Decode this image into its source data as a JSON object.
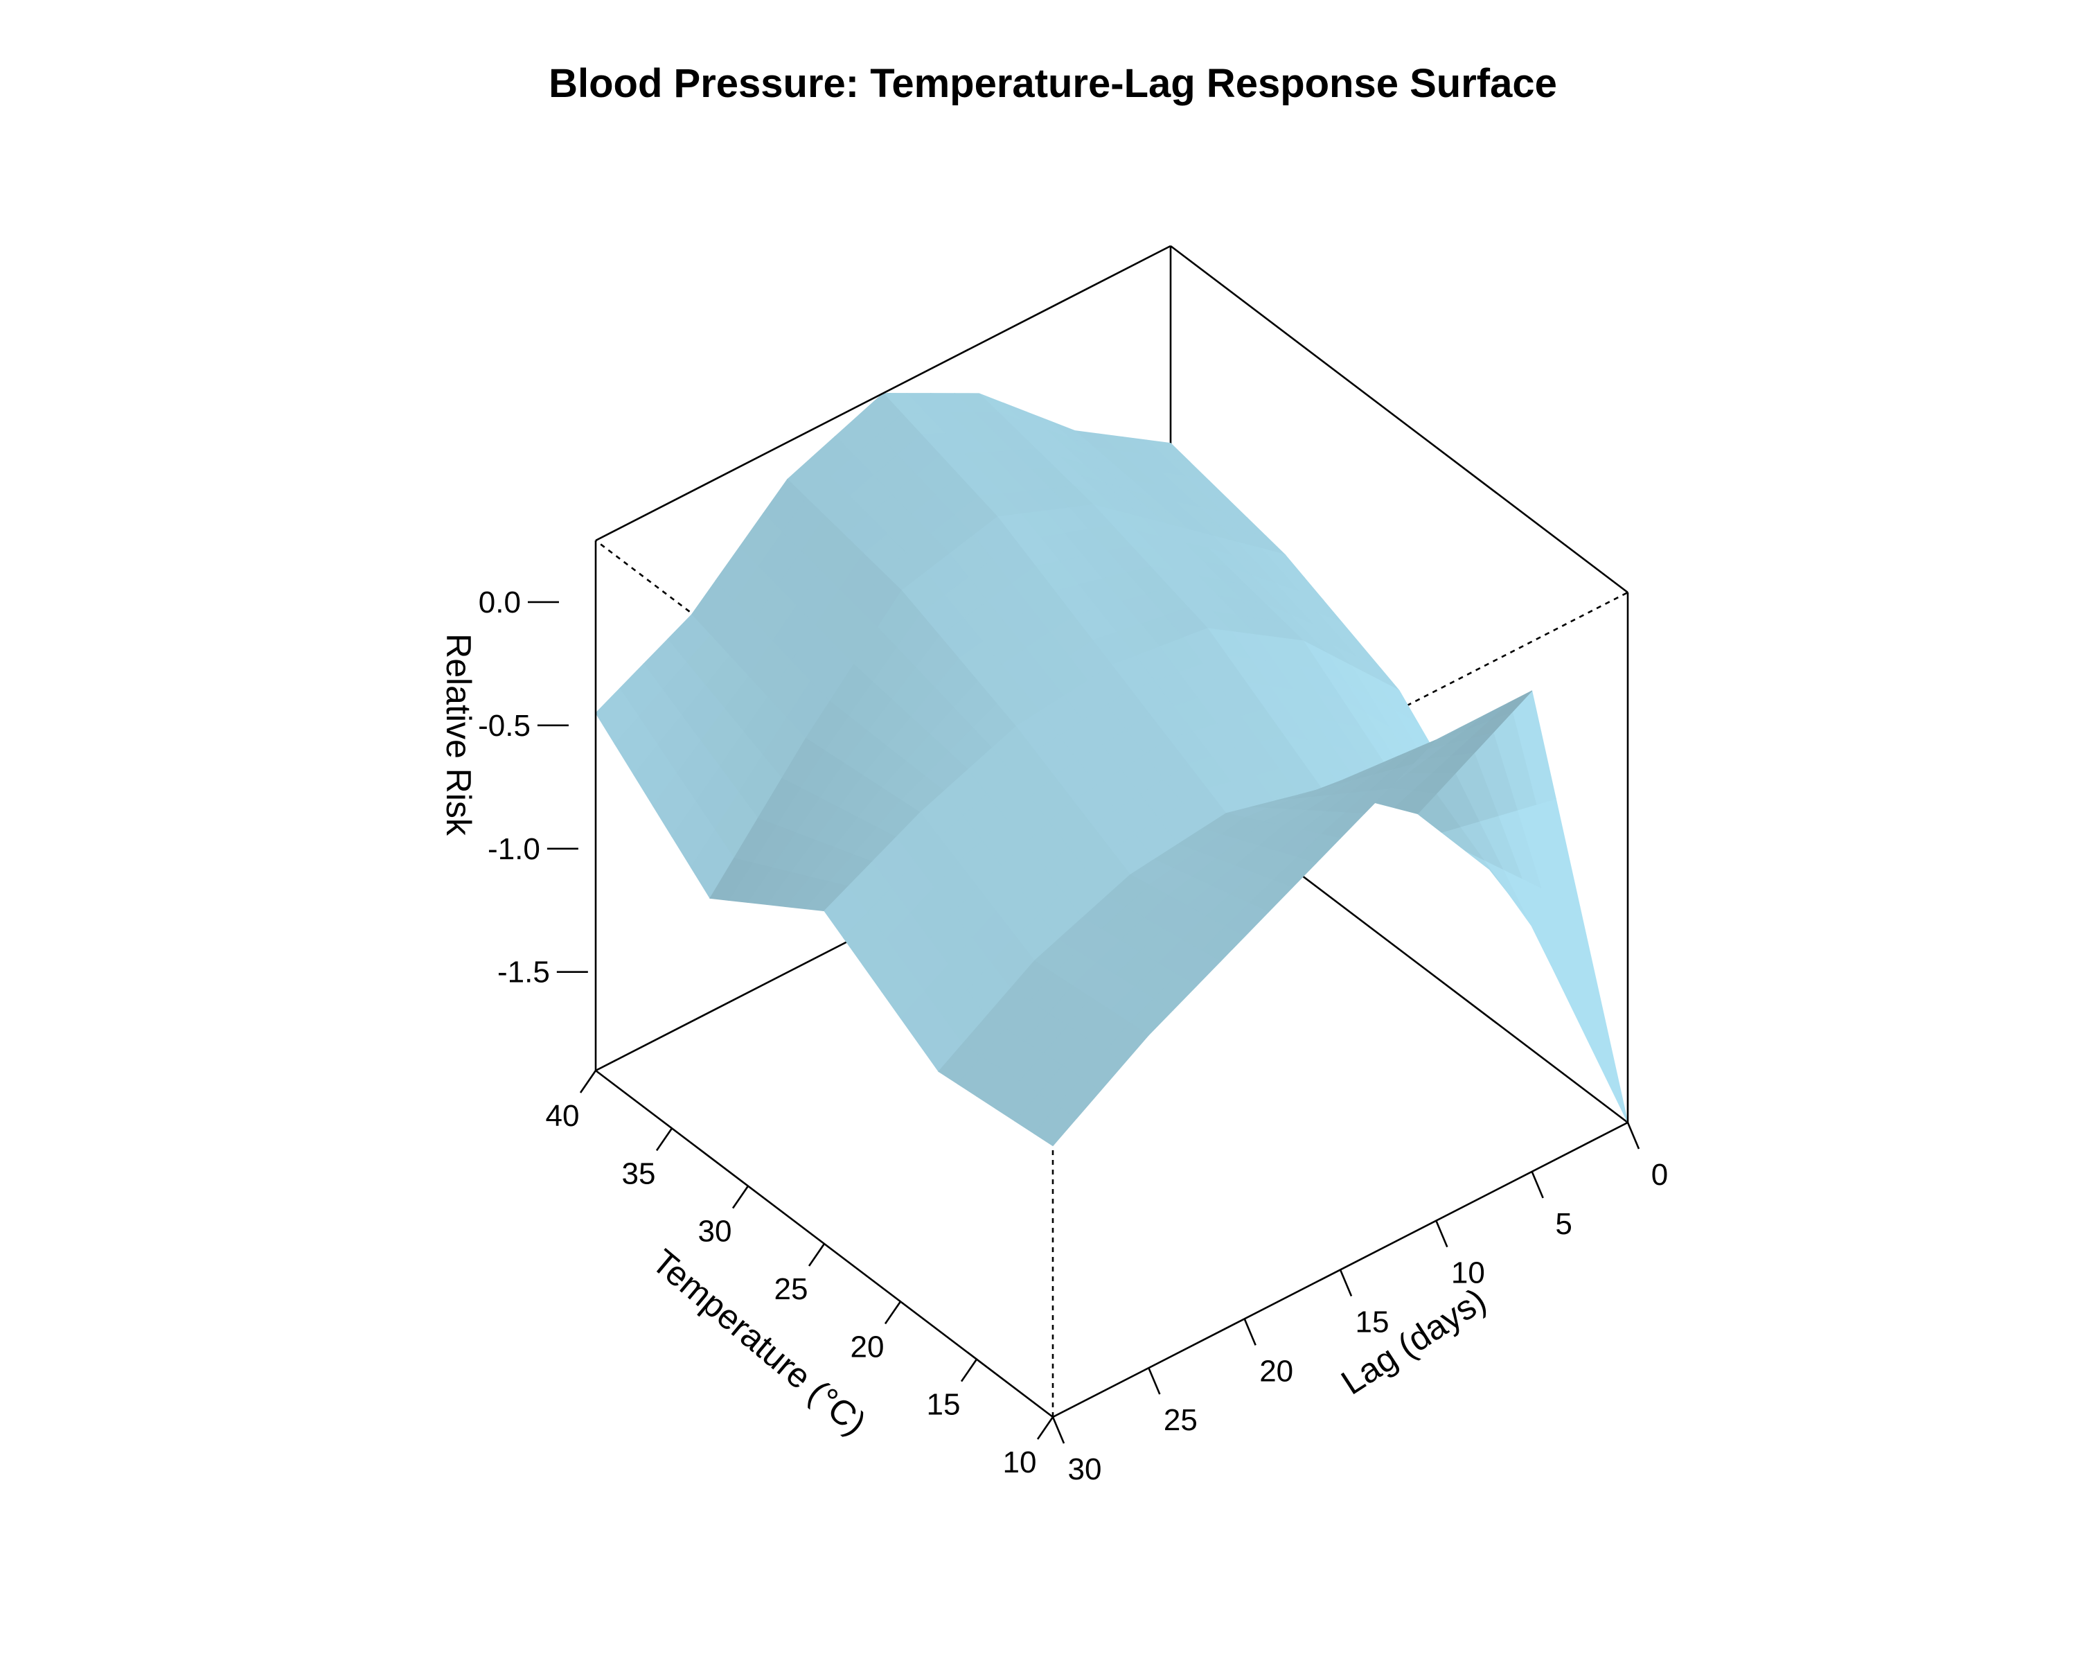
{
  "chart_data": {
    "type": "surface",
    "title": "Blood Pressure: Temperature-Lag Response Surface",
    "xlabel": "Temperature (°C)",
    "ylabel": "Lag (days)",
    "zlabel": "Relative Risk",
    "x_ticks": [
      "10",
      "15",
      "20",
      "25",
      "30",
      "35",
      "40"
    ],
    "y_ticks": [
      "0",
      "5",
      "10",
      "15",
      "20",
      "25",
      "30"
    ],
    "z_ticks": [
      "0.0",
      "-0.5",
      "-1.0",
      "-1.5"
    ],
    "xlim": [
      10,
      40
    ],
    "ylim": [
      0,
      30
    ],
    "zlim": [
      -1.9,
      0.25
    ],
    "surface_color": "#9ac8d8",
    "grid_temperature": [
      10,
      17.5,
      25,
      32.5,
      40
    ],
    "grid_lag": [
      0,
      5,
      10,
      15,
      20,
      25,
      30
    ],
    "z_values": [
      [
        -1.9,
        0.05,
        0.05,
        -0.15,
        -0.35,
        -0.55,
        -0.8
      ],
      [
        -1.3,
        -0.8,
        -0.5,
        -0.4,
        -0.45,
        -0.6,
        -0.85
      ],
      [
        -0.85,
        -0.45,
        -0.2,
        -0.15,
        -0.2,
        -0.35,
        -0.55
      ],
      [
        -0.65,
        -0.35,
        -0.05,
        0.1,
        0.0,
        -0.4,
        -0.85
      ],
      [
        -0.55,
        -0.3,
        0.05,
        0.25,
        0.1,
        -0.25,
        -0.45
      ]
    ]
  }
}
